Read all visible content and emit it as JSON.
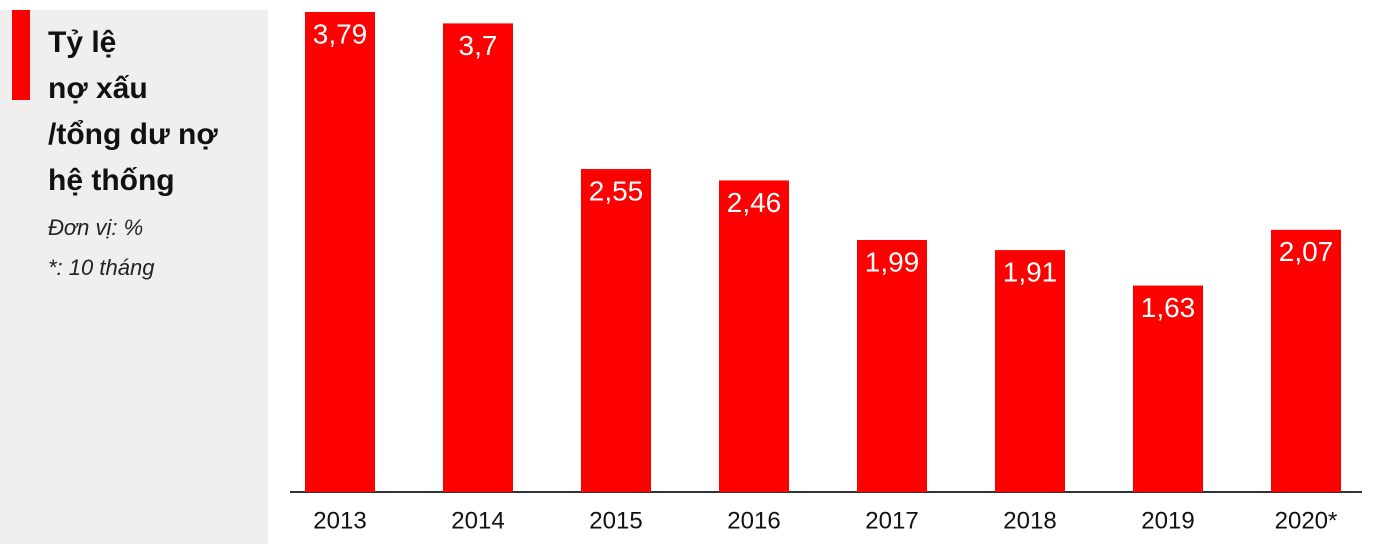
{
  "chart_data": {
    "type": "bar",
    "title": [
      "Tỷ lệ",
      "nợ xấu",
      "/tổng dư nợ",
      "hệ thống"
    ],
    "subtitle": "Đơn vị: %",
    "note": "*: 10 tháng",
    "categories": [
      "2013",
      "2014",
      "2015",
      "2016",
      "2017",
      "2018",
      "2019",
      "2020*"
    ],
    "values": [
      3.79,
      3.7,
      2.55,
      2.46,
      1.99,
      1.91,
      1.63,
      2.07
    ],
    "value_labels": [
      "3,79",
      "3,7",
      "2,55",
      "2,46",
      "1,99",
      "1,91",
      "1,63",
      "2,07"
    ],
    "color": "#ff0000",
    "ylim": [
      0,
      3.79
    ]
  }
}
